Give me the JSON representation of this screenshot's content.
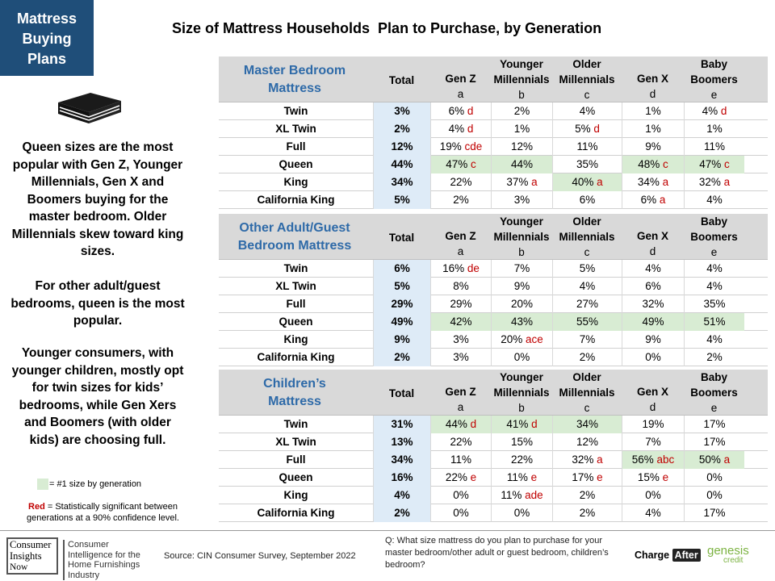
{
  "badge": {
    "line1": "Mattress",
    "line2": "Buying",
    "line3": "Plans"
  },
  "title": "Size of Mattress Households  Plan to Purchase, by Generation",
  "left_text": {
    "p1": "Queen sizes are the most popular with Gen Z, Younger Millennials, Gen X and Boomers buying for the master bedroom. Older Millennials skew toward king sizes.",
    "p2": "For other adult/guest bedrooms, queen is the most popular.",
    "p3": "Younger consumers, with younger children, mostly opt for twin sizes for kids’ bedrooms, while Gen Xers and Boomers (with older kids) are choosing full."
  },
  "legend": {
    "green": "= #1 size by generation",
    "red_word": "Red",
    "red_text": " = Statistically significant between generations at a 90% confidence level."
  },
  "columns": {
    "total": "Total",
    "genz": {
      "l1": "Gen Z",
      "l2": "a"
    },
    "ymill": {
      "l1": "Younger",
      "l2": "Millennials",
      "l3": "b"
    },
    "omill": {
      "l1": "Older",
      "l2": "Millennials",
      "l3": "c"
    },
    "genx": {
      "l1": "Gen X",
      "l2": "d"
    },
    "boom": {
      "l1": "Baby",
      "l2": "Boomers",
      "l3": "e"
    }
  },
  "tables": {
    "master": {
      "title_l1": "Master Bedroom",
      "title_l2": "Mattress",
      "rows": [
        {
          "label": "Twin",
          "total": "3%",
          "genz": "6%",
          "genz_s": "d",
          "ymill": "2%",
          "ymill_s": "",
          "omill": "4%",
          "omill_s": "",
          "genx": "1%",
          "genx_s": "",
          "boom": "4%",
          "boom_s": "d"
        },
        {
          "label": "XL Twin",
          "total": "2%",
          "genz": "4%",
          "genz_s": "d",
          "ymill": "1%",
          "ymill_s": "",
          "omill": "5%",
          "omill_s": "d",
          "genx": "1%",
          "genx_s": "",
          "boom": "1%",
          "boom_s": ""
        },
        {
          "label": "Full",
          "total": "12%",
          "genz": "19%",
          "genz_s": "cde",
          "ymill": "12%",
          "ymill_s": "",
          "omill": "11%",
          "omill_s": "",
          "genx": "9%",
          "genx_s": "",
          "boom": "11%",
          "boom_s": ""
        },
        {
          "label": "Queen",
          "total": "44%",
          "genz": "47%",
          "genz_s": "c",
          "ymill": "44%",
          "ymill_s": "",
          "omill": "35%",
          "omill_s": "",
          "genx": "48%",
          "genx_s": "c",
          "boom": "47%",
          "boom_s": "c"
        },
        {
          "label": "King",
          "total": "34%",
          "genz": "22%",
          "genz_s": "",
          "ymill": "37%",
          "ymill_s": "a",
          "omill": "40%",
          "omill_s": "a",
          "genx": "34%",
          "genx_s": "a",
          "boom": "32%",
          "boom_s": "a"
        },
        {
          "label": "California King",
          "total": "5%",
          "genz": "2%",
          "genz_s": "",
          "ymill": "3%",
          "ymill_s": "",
          "omill": "6%",
          "omill_s": "",
          "genx": "6%",
          "genx_s": "a",
          "boom": "4%",
          "boom_s": ""
        }
      ]
    },
    "guest": {
      "title_l1": "Other Adult/Guest",
      "title_l2": "Bedroom Mattress",
      "rows": [
        {
          "label": "Twin",
          "total": "6%",
          "genz": "16%",
          "genz_s": "de",
          "ymill": "7%",
          "ymill_s": "",
          "omill": "5%",
          "omill_s": "",
          "genx": "4%",
          "genx_s": "",
          "boom": "4%",
          "boom_s": ""
        },
        {
          "label": "XL Twin",
          "total": "5%",
          "genz": "8%",
          "genz_s": "",
          "ymill": "9%",
          "ymill_s": "",
          "omill": "4%",
          "omill_s": "",
          "genx": "6%",
          "genx_s": "",
          "boom": "4%",
          "boom_s": ""
        },
        {
          "label": "Full",
          "total": "29%",
          "genz": "29%",
          "genz_s": "",
          "ymill": "20%",
          "ymill_s": "",
          "omill": "27%",
          "omill_s": "",
          "genx": "32%",
          "genx_s": "",
          "boom": "35%",
          "boom_s": ""
        },
        {
          "label": "Queen",
          "total": "49%",
          "genz": "42%",
          "genz_s": "",
          "ymill": "43%",
          "ymill_s": "",
          "omill": "55%",
          "omill_s": "",
          "genx": "49%",
          "genx_s": "",
          "boom": "51%",
          "boom_s": ""
        },
        {
          "label": "King",
          "total": "9%",
          "genz": "3%",
          "genz_s": "",
          "ymill": "20%",
          "ymill_s": "ace",
          "omill": "7%",
          "omill_s": "",
          "genx": "9%",
          "genx_s": "",
          "boom": "4%",
          "boom_s": ""
        },
        {
          "label": "California King",
          "total": "2%",
          "genz": "3%",
          "genz_s": "",
          "ymill": "0%",
          "ymill_s": "",
          "omill": "2%",
          "omill_s": "",
          "genx": "0%",
          "genx_s": "",
          "boom": "2%",
          "boom_s": ""
        }
      ]
    },
    "children": {
      "title_l1": "Children’s",
      "title_l2": "Mattress",
      "rows": [
        {
          "label": "Twin",
          "total": "31%",
          "genz": "44%",
          "genz_s": "d",
          "ymill": "41%",
          "ymill_s": "d",
          "omill": "34%",
          "omill_s": "",
          "genx": "19%",
          "genx_s": "",
          "boom": "17%",
          "boom_s": ""
        },
        {
          "label": "XL Twin",
          "total": "13%",
          "genz": "22%",
          "genz_s": "",
          "ymill": "15%",
          "ymill_s": "",
          "omill": "12%",
          "omill_s": "",
          "genx": "7%",
          "genx_s": "",
          "boom": "17%",
          "boom_s": ""
        },
        {
          "label": "Full",
          "total": "34%",
          "genz": "11%",
          "genz_s": "",
          "ymill": "22%",
          "ymill_s": "",
          "omill": "32%",
          "omill_s": "a",
          "genx": "56%",
          "genx_s": "abc",
          "boom": "50%",
          "boom_s": "a"
        },
        {
          "label": "Queen",
          "total": "16%",
          "genz": "22%",
          "genz_s": "e",
          "ymill": "11%",
          "ymill_s": "e",
          "omill": "17%",
          "omill_s": "e",
          "genx": "15%",
          "genx_s": "e",
          "boom": "0%",
          "boom_s": ""
        },
        {
          "label": "King",
          "total": "4%",
          "genz": "0%",
          "genz_s": "",
          "ymill": "11%",
          "ymill_s": "ade",
          "omill": "2%",
          "omill_s": "",
          "genx": "0%",
          "genx_s": "",
          "boom": "0%",
          "boom_s": ""
        },
        {
          "label": "California King",
          "total": "2%",
          "genz": "0%",
          "genz_s": "",
          "ymill": "0%",
          "ymill_s": "",
          "omill": "2%",
          "omill_s": "",
          "genx": "4%",
          "genx_s": "",
          "boom": "17%",
          "boom_s": ""
        }
      ]
    }
  },
  "footer": {
    "cin_l1": "Consumer",
    "cin_l2": "Insights",
    "cin_l3": "Now",
    "cin_desc": "Consumer Intelligence for the Home Furnishings Industry",
    "source": "Source: CIN Consumer Survey, September  2022",
    "question": "Q: What size mattress do you plan to purchase for your master bedroom/other  adult or guest bedroom, children’s bedroom?",
    "charge": "Charge",
    "after": "After",
    "genesis": "genesis",
    "credit": "credit"
  }
}
